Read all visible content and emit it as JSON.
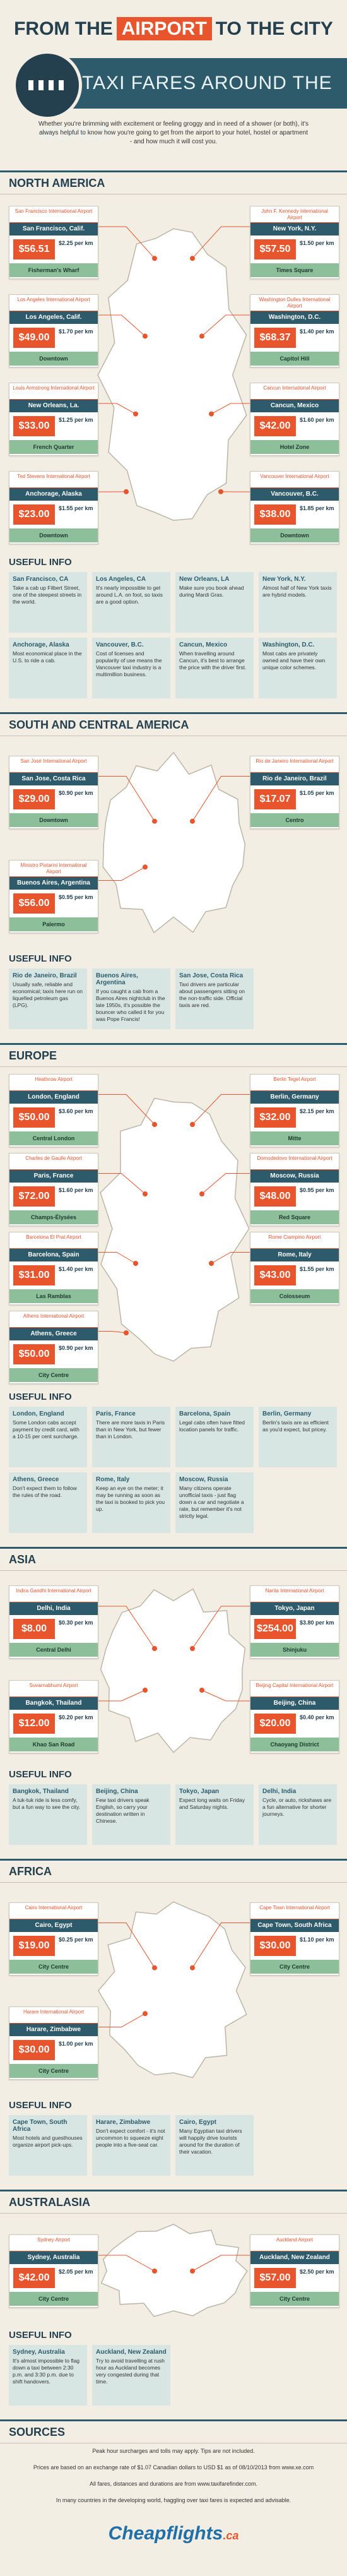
{
  "header": {
    "title_start": "FROM THE",
    "title_highlight": "AIRPORT",
    "title_end": "TO THE CITY",
    "subtitle": "TAXI FARES AROUND THE WORLD",
    "intro": "Whether you're brimming with excitement or feeling groggy and in need of a shower (or both), it's always helpful to know how you're going to get from the airport to your hotel, hostel or apartment - and how much it will cost you."
  },
  "sections": [
    {
      "title": "NORTH AMERICA",
      "cards": [
        {
          "airport": "San Francisco International Airport",
          "city": "San Francisco, Calif.",
          "fare": "$56.51",
          "rate": "$2.25 per km",
          "destination": "Fisherman's Wharf"
        },
        {
          "airport": "John F. Kennedy International Airport",
          "city": "New York, N.Y.",
          "fare": "$57.50",
          "rate": "$1.50 per km",
          "destination": "Times Square"
        },
        {
          "airport": "Los Angeles International Airport",
          "city": "Los Angeles, Calif.",
          "fare": "$49.00",
          "rate": "$1.70 per km",
          "destination": "Downtown"
        },
        {
          "airport": "Washington Dulles International Airport",
          "city": "Washington, D.C.",
          "fare": "$68.37",
          "rate": "$1.40 per km",
          "destination": "Capitol Hill"
        },
        {
          "airport": "Louis Armstrong International Airport",
          "city": "New Orleans, La.",
          "fare": "$33.00",
          "rate": "$1.25 per km",
          "destination": "French Quarter"
        },
        {
          "airport": "Cancun International Airport",
          "city": "Cancun, Mexico",
          "fare": "$42.00",
          "rate": "$1.60 per km",
          "destination": "Hotel Zone"
        },
        {
          "airport": "Ted Stevens International Airport",
          "city": "Anchorage, Alaska",
          "fare": "$23.00",
          "rate": "$1.55 per km",
          "destination": "Downtown"
        },
        {
          "airport": "Vancouver International Airport",
          "city": "Vancouver, B.C.",
          "fare": "$38.00",
          "rate": "$1.85 per km",
          "destination": "Downtown"
        }
      ],
      "info_title": "USEFUL INFO",
      "info": [
        {
          "city": "San Francisco, CA",
          "text": "Take a cab up Filbert Street, one of the steepest streets in the world."
        },
        {
          "city": "Los Angeles, CA",
          "text": "It's nearly impossible to get around L.A. on foot, so taxis are a good option."
        },
        {
          "city": "New Orleans, LA",
          "text": "Make sure you book ahead during Mardi Gras."
        },
        {
          "city": "New York, N.Y.",
          "text": "Almost half of New York taxis are hybrid models."
        },
        {
          "city": "Anchorage, Alaska",
          "text": "Most economical place in the U.S. to ride a cab."
        },
        {
          "city": "Vancouver, B.C.",
          "text": "Cost of licenses and popularity of use means the Vancouver taxi industry is a multimillion business."
        },
        {
          "city": "Cancun, Mexico",
          "text": "When travelling around Cancun, it's best to arrange the price with the driver first."
        },
        {
          "city": "Washington, D.C.",
          "text": "Most cabs are privately owned and have their own unique color schemes."
        }
      ]
    },
    {
      "title": "SOUTH AND CENTRAL AMERICA",
      "cards": [
        {
          "airport": "San José International Airport",
          "city": "San Jose, Costa Rica",
          "fare": "$29.00",
          "rate": "$0.90 per km",
          "destination": "Downtown"
        },
        {
          "airport": "Rio de Janeiro International Airport",
          "city": "Rio de Janeiro, Brazil",
          "fare": "$17.07",
          "rate": "$1.05 per km",
          "destination": "Centro"
        },
        {
          "airport": "Ministro Pistarini International Airport",
          "city": "Buenos Aires, Argentina",
          "fare": "$56.00",
          "rate": "$0.95 per km",
          "destination": "Palermo"
        }
      ],
      "info_title": "USEFUL INFO",
      "info": [
        {
          "city": "Rio de Janeiro, Brazil",
          "text": "Usually safe, reliable and economical; taxis here run on liquefied petroleum gas (LPG)."
        },
        {
          "city": "Buenos Aires, Argentina",
          "text": "If you caught a cab from a Buenos Aires nightclub in the late 1950s, it's possible the bouncer who called it for you was Pope Francis!"
        },
        {
          "city": "San Jose, Costa Rica",
          "text": "Taxi drivers are particular about passengers sitting on the non-traffic side. Official taxis are red."
        }
      ]
    },
    {
      "title": "EUROPE",
      "cards": [
        {
          "airport": "Heathrow Airport",
          "city": "London, England",
          "fare": "$50.00",
          "rate": "$3.60 per km",
          "destination": "Central London"
        },
        {
          "airport": "Berlin Tegel Airport",
          "city": "Berlin, Germany",
          "fare": "$32.00",
          "rate": "$2.15 per km",
          "destination": "Mitte"
        },
        {
          "airport": "Charles de Gaulle Airport",
          "city": "Paris, France",
          "fare": "$72.00",
          "rate": "$1.60 per km",
          "destination": "Champs-Élysées"
        },
        {
          "airport": "Domodedovo International Airport",
          "city": "Moscow, Russia",
          "fare": "$48.00",
          "rate": "$0.95 per km",
          "destination": "Red Square"
        },
        {
          "airport": "Barcelona El Prat Airport",
          "city": "Barcelona, Spain",
          "fare": "$31.00",
          "rate": "$1.40 per km",
          "destination": "Las Ramblas"
        },
        {
          "airport": "Rome Ciampino Airport",
          "city": "Rome, Italy",
          "fare": "$43.00",
          "rate": "$1.55 per km",
          "destination": "Colosseum"
        },
        {
          "airport": "Athens International Airport",
          "city": "Athens, Greece",
          "fare": "$50.00",
          "rate": "$0.90 per km",
          "destination": "City Centre"
        }
      ],
      "info_title": "USEFUL INFO",
      "info": [
        {
          "city": "London, England",
          "text": "Some London cabs accept payment by credit card, with a 10-15 per cent surcharge."
        },
        {
          "city": "Paris, France",
          "text": "There are more taxis in Paris than in New York, but fewer than in London."
        },
        {
          "city": "Barcelona, Spain",
          "text": "Legal cabs often have fitted location panels for traffic."
        },
        {
          "city": "Berlin, Germany",
          "text": "Berlin's taxis are as efficient as you'd expect, but pricey."
        },
        {
          "city": "Athens, Greece",
          "text": "Don't expect them to follow the rules of the road."
        },
        {
          "city": "Rome, Italy",
          "text": "Keep an eye on the meter; it may be running as soon as the taxi is booked to pick you up."
        },
        {
          "city": "Moscow, Russia",
          "text": "Many citizens operate unofficial taxis - just flag down a car and negotiate a rate, but remember it's not strictly legal."
        }
      ]
    },
    {
      "title": "ASIA",
      "cards": [
        {
          "airport": "Indira Gandhi International Airport",
          "city": "Delhi, India",
          "fare": "$8.00",
          "rate": "$0.30 per km",
          "destination": "Central Delhi"
        },
        {
          "airport": "Narita International Airport",
          "city": "Tokyo, Japan",
          "fare": "$254.00",
          "rate": "$3.80 per km",
          "destination": "Shinjuku"
        },
        {
          "airport": "Suvarnabhumi Airport",
          "city": "Bangkok, Thailand",
          "fare": "$12.00",
          "rate": "$0.20 per km",
          "destination": "Khao San Road"
        },
        {
          "airport": "Beijing Capital International Airport",
          "city": "Beijing, China",
          "fare": "$20.00",
          "rate": "$0.40 per km",
          "destination": "Chaoyang District"
        }
      ],
      "info_title": "USEFUL INFO",
      "info": [
        {
          "city": "Bangkok, Thailand",
          "text": "A tuk-tuk ride is less comfy, but a fun way to see the city."
        },
        {
          "city": "Beijing, China",
          "text": "Few taxi drivers speak English, so carry your destination written in Chinese."
        },
        {
          "city": "Tokyo, Japan",
          "text": "Expect long waits on Friday and Saturday nights."
        },
        {
          "city": "Delhi, India",
          "text": "Cycle, or auto, rickshaws are a fun alternative for shorter journeys."
        }
      ]
    },
    {
      "title": "AFRICA",
      "cards": [
        {
          "airport": "Cairo International Airport",
          "city": "Cairo, Egypt",
          "fare": "$19.00",
          "rate": "$0.25 per km",
          "destination": "City Centre"
        },
        {
          "airport": "Cape Town International Airport",
          "city": "Cape Town, South Africa",
          "fare": "$30.00",
          "rate": "$1.10 per km",
          "destination": "City Centre"
        },
        {
          "airport": "Harare International Airport",
          "city": "Harare, Zimbabwe",
          "fare": "$30.00",
          "rate": "$1.00 per km",
          "destination": "City Centre"
        }
      ],
      "info_title": "USEFUL INFO",
      "info": [
        {
          "city": "Cape Town, South Africa",
          "text": "Most hotels and guesthouses organize airport pick-ups."
        },
        {
          "city": "Harare, Zimbabwe",
          "text": "Don't expect comfort - it's not uncommon to squeeze eight people into a five-seat car."
        },
        {
          "city": "Cairo, Egypt",
          "text": "Many Egyptian taxi drivers will happily drive tourists around for the duration of their vacation."
        }
      ]
    },
    {
      "title": "AUSTRALASIA",
      "cards": [
        {
          "airport": "Sydney Airport",
          "city": "Sydney, Australia",
          "fare": "$42.00",
          "rate": "$2.05 per km",
          "destination": "City Centre"
        },
        {
          "airport": "Auckland Airport",
          "city": "Auckland, New Zealand",
          "fare": "$57.00",
          "rate": "$2.50 per km",
          "destination": "City Centre"
        }
      ],
      "info_title": "USEFUL INFO",
      "info": [
        {
          "city": "Sydney, Australia",
          "text": "It's almost impossible to flag down a taxi between 2:30 p.m. and 3:30 p.m. due to shift handovers."
        },
        {
          "city": "Auckland, New Zealand",
          "text": "Try to avoid travelling at rush hour as Auckland becomes very congested during that time."
        }
      ]
    }
  ],
  "sources": {
    "title": "SOURCES",
    "lines": [
      "Peak hour surcharges and tolls may apply. Tips are not included.",
      "Prices are based on an exchange rate of $1.07 Canadian dollars to USD $1 as of 08/10/2013 from www.xe.com",
      "All fares, distances and durations are from www.taxifarefinder.com.",
      "In many countries in the developing world, haggling over taxi fares is expected and advisable."
    ]
  },
  "footer": {
    "brand": "Cheapflights",
    "suffix": ".ca"
  }
}
